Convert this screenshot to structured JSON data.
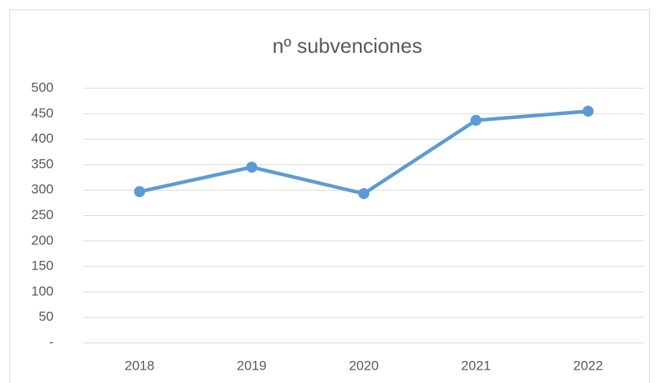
{
  "chart_data": {
    "type": "line",
    "title": "nº subvenciones",
    "categories": [
      "2018",
      "2019",
      "2020",
      "2021",
      "2022"
    ],
    "values": [
      297,
      345,
      293,
      437,
      455
    ],
    "color": "#5b9bd5",
    "ylim": [
      0,
      500
    ],
    "yticks": [
      {
        "value": 0,
        "label": "-"
      },
      50,
      100,
      150,
      200,
      250,
      300,
      350,
      400,
      450,
      500
    ],
    "grid": true
  }
}
